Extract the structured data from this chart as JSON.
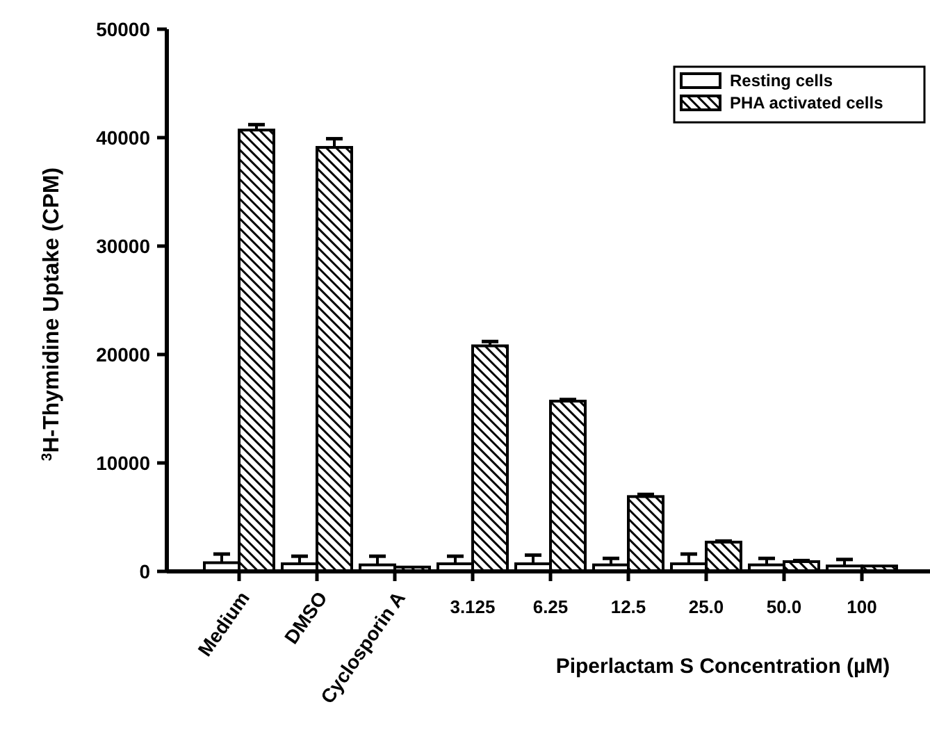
{
  "chart_data": {
    "type": "bar",
    "ylabel": "$^{3}$H-Thymidine Uptake (CPM)",
    "xlabel": "Piperlactam S Concentration (µM)",
    "categories": [
      "Medium",
      "DMSO",
      "Cyclosporin A",
      "3.125",
      "6.25",
      "12.5",
      "25.0",
      "50.0",
      "100"
    ],
    "series": [
      {
        "name": "Resting cells",
        "color": "#ffffff",
        "values": [
          800,
          700,
          600,
          700,
          700,
          600,
          700,
          600,
          500
        ],
        "errors": [
          800,
          700,
          800,
          700,
          800,
          600,
          900,
          600,
          600
        ]
      },
      {
        "name": "PHA activated cells",
        "color": "#000000",
        "values": [
          40700,
          39100,
          400,
          20800,
          15700,
          6900,
          2700,
          900,
          500
        ],
        "errors": [
          500,
          800,
          null,
          400,
          150,
          200,
          100,
          100,
          null
        ]
      }
    ],
    "ylim": [
      0,
      50000
    ],
    "yticks": [
      0,
      10000,
      20000,
      30000,
      40000,
      50000
    ],
    "legend": "top right"
  }
}
